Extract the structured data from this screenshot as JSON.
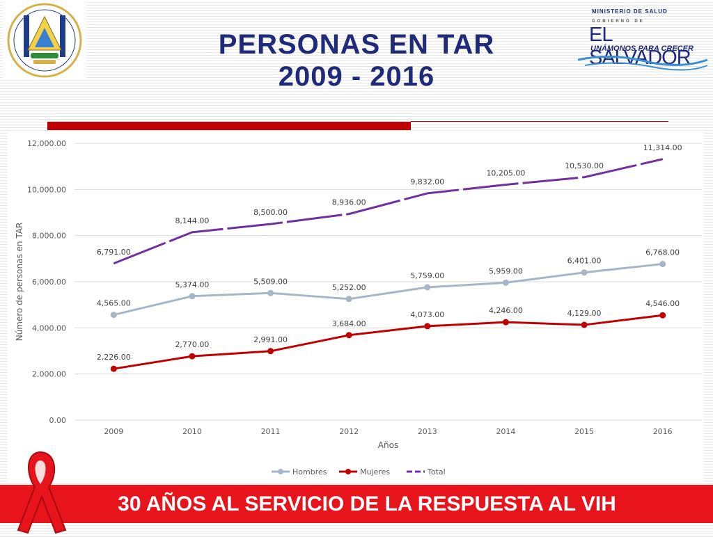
{
  "slide": {
    "title_line1": "PERSONAS EN TAR",
    "title_line2": "2009 - 2016",
    "ministry": "MINISTERIO DE SALUD",
    "gobierno": "GOBIERNO DE",
    "country": "EL SALVADOR",
    "slogan": "UNÁMONOS PARA CRECER",
    "banner": "30 AÑOS AL SERVICIO DE LA RESPUESTA AL VIH",
    "seal_icon": "coat-of-arms-icon",
    "ribbon_icon": "awareness-ribbon-icon",
    "colors": {
      "title": "#1f2a7a",
      "banner": "#e8141c",
      "bar": "#c00000"
    }
  },
  "chart_data": {
    "type": "line",
    "categories": [
      "2009",
      "2010",
      "2011",
      "2012",
      "2013",
      "2014",
      "2015",
      "2016"
    ],
    "series": [
      {
        "name": "Hombres",
        "color": "#a6b6c6",
        "dashed": false,
        "values": [
          4565,
          5374,
          5509,
          5252,
          5759,
          5959,
          6401,
          6768
        ],
        "labels": [
          "4,565.00",
          "5,374.00",
          "5,509.00",
          "5,252.00",
          "5,759.00",
          "5,959.00",
          "6,401.00",
          "6,768.00"
        ]
      },
      {
        "name": "Mujeres",
        "color": "#c00000",
        "dashed": false,
        "values": [
          2226,
          2770,
          2991,
          3684,
          4073,
          4246,
          4129,
          4546
        ],
        "labels": [
          "2,226.00",
          "2,770.00",
          "2,991.00",
          "3,684.00",
          "4,073.00",
          "4,246.00",
          "4,129.00",
          "4,546.00"
        ]
      },
      {
        "name": "Total",
        "color": "#7030a0",
        "dashed": true,
        "values": [
          6791,
          8144,
          8500,
          8936,
          9832,
          10205,
          10530,
          11314
        ],
        "labels": [
          "6,791.00",
          "8,144.00",
          "8,500.00",
          "8,936.00",
          "9,832.00",
          "10,205.00",
          "10,530.00",
          "11,314.00"
        ]
      }
    ],
    "xlabel": "Años",
    "ylabel": "Número de personas en TAR",
    "ylim": [
      0,
      12000
    ],
    "yticks": [
      0,
      2000,
      4000,
      6000,
      8000,
      10000,
      12000
    ],
    "ytick_labels": [
      "0.00",
      "2,000.00",
      "4,000.00",
      "6,000.00",
      "8,000.00",
      "10,000.00",
      "12,000.00"
    ],
    "grid": true,
    "legend": "bottom"
  }
}
